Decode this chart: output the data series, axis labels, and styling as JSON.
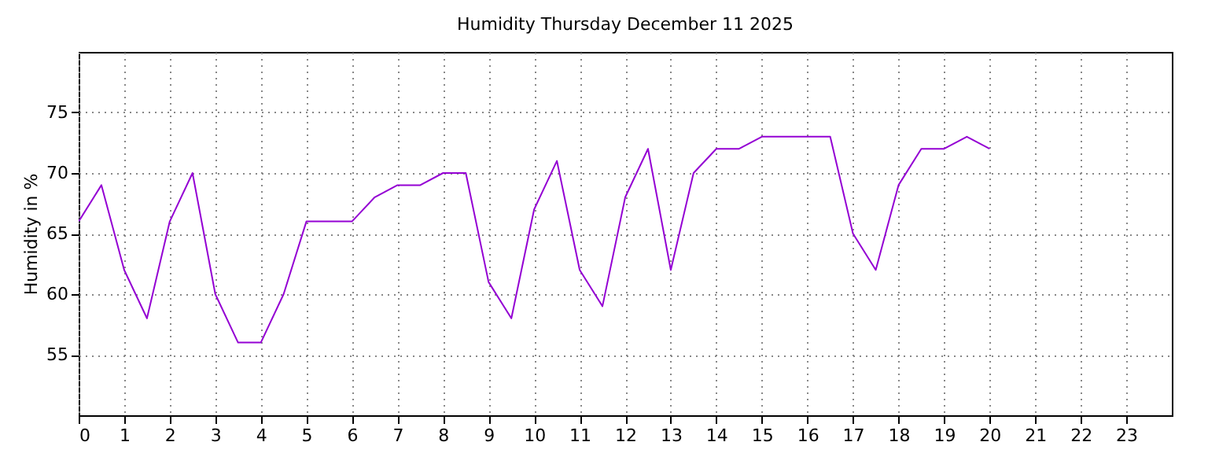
{
  "chart_data": {
    "type": "line",
    "title": "Humidity Thursday December 11 2025",
    "ylabel": "Humidity in %",
    "x": [
      0,
      0.5,
      1,
      1.5,
      2,
      2.5,
      3,
      3.5,
      4,
      4.5,
      5,
      5.5,
      6,
      6.5,
      7,
      7.5,
      8,
      8.5,
      9,
      9.5,
      10,
      10.5,
      11,
      11.5,
      12,
      12.5,
      13,
      13.5,
      14,
      14.5,
      15,
      15.5,
      16,
      16.5,
      17,
      17.5,
      18,
      18.5,
      19,
      19.5,
      20
    ],
    "series": [
      {
        "color": "#9400d3",
        "values": [
          66,
          69,
          62,
          58,
          66,
          70,
          60,
          56,
          56,
          60,
          66,
          66,
          66,
          68,
          69,
          69,
          70,
          70,
          61,
          58,
          67,
          71,
          62,
          59,
          68,
          72,
          62,
          70,
          72,
          72,
          73,
          73,
          73,
          73,
          65,
          62,
          69,
          72,
          72,
          73,
          72
        ]
      }
    ],
    "xlim": [
      0,
      24
    ],
    "xticks": [
      0,
      1,
      2,
      3,
      4,
      5,
      6,
      7,
      8,
      9,
      10,
      11,
      12,
      13,
      14,
      15,
      16,
      17,
      18,
      19,
      20,
      21,
      22,
      23
    ],
    "ylim": [
      50,
      80
    ],
    "yticks": [
      55,
      60,
      65,
      70,
      75
    ],
    "grid": true
  }
}
